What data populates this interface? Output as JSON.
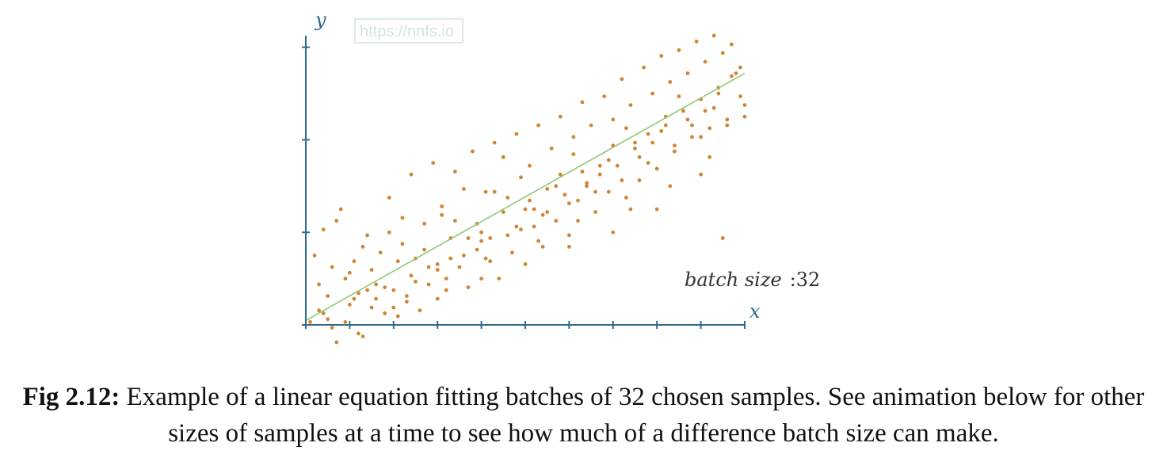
{
  "watermark": "https://nnfs.io",
  "chart_data": {
    "type": "scatter",
    "x_label": "x",
    "y_label": "y",
    "xlim": [
      0,
      10
    ],
    "ylim": [
      0,
      10
    ],
    "x_tick_count": 11,
    "y_ticks": [
      0,
      3.2,
      6.4,
      9.6
    ],
    "grid": false,
    "annotation": {
      "text_italic": "batch size",
      "text_value": ":32"
    },
    "fit_line": {
      "start": [
        0,
        0.15
      ],
      "end": [
        10,
        8.7
      ],
      "color": "#8fca72"
    },
    "point_color": "#cf8537",
    "points": [
      [
        0.1,
        0.1
      ],
      [
        0.3,
        0.5
      ],
      [
        0.5,
        0.2
      ],
      [
        0.6,
        -0.1
      ],
      [
        0.7,
        -0.6
      ],
      [
        0.9,
        0.1
      ],
      [
        1.0,
        0.7
      ],
      [
        1.2,
        -0.3
      ],
      [
        1.3,
        -0.4
      ],
      [
        1.5,
        0.6
      ],
      [
        1.6,
        0.9
      ],
      [
        1.8,
        0.4
      ],
      [
        2.0,
        1.2
      ],
      [
        2.1,
        0.3
      ],
      [
        2.3,
        0.8
      ],
      [
        2.5,
        1.5
      ],
      [
        2.6,
        0.5
      ],
      [
        2.8,
        1.4
      ],
      [
        3.0,
        1.9
      ],
      [
        3.2,
        1.2
      ],
      [
        3.3,
        2.3
      ],
      [
        3.5,
        2.0
      ],
      [
        3.7,
        1.3
      ],
      [
        3.9,
        2.6
      ],
      [
        4.0,
        2.9
      ],
      [
        4.2,
        2.2
      ],
      [
        4.4,
        1.6
      ],
      [
        4.6,
        3.1
      ],
      [
        4.7,
        2.5
      ],
      [
        4.9,
        3.3
      ],
      [
        5.0,
        4.0
      ],
      [
        5.2,
        3.4
      ],
      [
        5.4,
        2.7
      ],
      [
        5.5,
        3.9
      ],
      [
        5.7,
        3.6
      ],
      [
        5.9,
        4.5
      ],
      [
        6.0,
        3.1
      ],
      [
        6.2,
        4.3
      ],
      [
        6.4,
        4.8
      ],
      [
        6.6,
        3.9
      ],
      [
        6.7,
        5.2
      ],
      [
        6.9,
        4.6
      ],
      [
        7.1,
        5.5
      ],
      [
        7.3,
        4.4
      ],
      [
        7.5,
        6.1
      ],
      [
        7.6,
        5.0
      ],
      [
        7.8,
        6.6
      ],
      [
        8.0,
        5.4
      ],
      [
        8.2,
        6.9
      ],
      [
        8.4,
        6.0
      ],
      [
        8.6,
        7.4
      ],
      [
        8.8,
        6.5
      ],
      [
        9.0,
        7.8
      ],
      [
        9.2,
        6.8
      ],
      [
        9.4,
        8.2
      ],
      [
        9.6,
        7.1
      ],
      [
        9.8,
        8.7
      ],
      [
        10.0,
        7.6
      ],
      [
        0.2,
        2.4
      ],
      [
        0.4,
        3.3
      ],
      [
        0.8,
        4.0
      ],
      [
        1.1,
        2.2
      ],
      [
        1.4,
        3.1
      ],
      [
        1.7,
        2.5
      ],
      [
        1.9,
        4.4
      ],
      [
        2.2,
        3.7
      ],
      [
        2.4,
        5.2
      ],
      [
        2.7,
        3.5
      ],
      [
        2.9,
        5.6
      ],
      [
        3.1,
        4.1
      ],
      [
        3.4,
        5.3
      ],
      [
        3.6,
        4.7
      ],
      [
        3.8,
        6.0
      ],
      [
        4.1,
        4.6
      ],
      [
        4.3,
        6.3
      ],
      [
        4.5,
        5.8
      ],
      [
        4.8,
        6.6
      ],
      [
        5.1,
        5.5
      ],
      [
        5.3,
        6.9
      ],
      [
        5.6,
        6.1
      ],
      [
        5.8,
        7.2
      ],
      [
        6.1,
        6.5
      ],
      [
        6.3,
        7.7
      ],
      [
        6.5,
        6.9
      ],
      [
        6.8,
        7.9
      ],
      [
        7.0,
        7.1
      ],
      [
        7.2,
        8.5
      ],
      [
        7.4,
        7.6
      ],
      [
        7.7,
        8.9
      ],
      [
        7.9,
        8.0
      ],
      [
        8.1,
        9.3
      ],
      [
        8.3,
        8.4
      ],
      [
        8.5,
        9.5
      ],
      [
        8.7,
        8.7
      ],
      [
        8.9,
        9.8
      ],
      [
        9.1,
        9.1
      ],
      [
        9.3,
        10.0
      ],
      [
        9.5,
        9.4
      ],
      [
        9.7,
        9.7
      ],
      [
        9.9,
        8.9
      ],
      [
        0.3,
        1.4
      ],
      [
        0.6,
        2.0
      ],
      [
        0.9,
        1.6
      ],
      [
        1.2,
        1.1
      ],
      [
        1.5,
        1.9
      ],
      [
        1.8,
        1.3
      ],
      [
        2.1,
        2.2
      ],
      [
        2.4,
        1.7
      ],
      [
        2.7,
        2.6
      ],
      [
        3.0,
        2.1
      ],
      [
        3.3,
        3.0
      ],
      [
        3.6,
        2.4
      ],
      [
        3.9,
        3.5
      ],
      [
        4.2,
        3.0
      ],
      [
        4.5,
        3.9
      ],
      [
        4.8,
        3.4
      ],
      [
        5.1,
        4.3
      ],
      [
        5.4,
        3.8
      ],
      [
        5.7,
        4.8
      ],
      [
        6.0,
        4.2
      ],
      [
        6.3,
        5.3
      ],
      [
        6.6,
        4.6
      ],
      [
        6.9,
        5.7
      ],
      [
        7.2,
        5.0
      ],
      [
        7.5,
        6.3
      ],
      [
        7.8,
        5.6
      ],
      [
        8.1,
        6.7
      ],
      [
        8.4,
        6.2
      ],
      [
        8.7,
        7.1
      ],
      [
        9.0,
        6.5
      ],
      [
        9.3,
        7.5
      ],
      [
        9.6,
        6.9
      ],
      [
        9.9,
        7.9
      ],
      [
        0.5,
        1.0
      ],
      [
        1.0,
        1.8
      ],
      [
        1.6,
        1.4
      ],
      [
        2.2,
        2.8
      ],
      [
        2.8,
        2.0
      ],
      [
        3.4,
        3.6
      ],
      [
        4.0,
        3.2
      ],
      [
        4.6,
        4.4
      ],
      [
        5.2,
        4.0
      ],
      [
        5.8,
        5.2
      ],
      [
        6.4,
        4.9
      ],
      [
        7.0,
        6.2
      ],
      [
        7.6,
        5.8
      ],
      [
        8.2,
        7.2
      ],
      [
        8.8,
        6.9
      ],
      [
        9.4,
        8.0
      ],
      [
        10.0,
        7.2
      ],
      [
        0.7,
        3.6
      ],
      [
        1.3,
        2.7
      ],
      [
        1.9,
        3.2
      ],
      [
        2.5,
        2.3
      ],
      [
        3.1,
        3.8
      ],
      [
        3.7,
        3.0
      ],
      [
        4.3,
        4.6
      ],
      [
        4.9,
        5.1
      ],
      [
        5.5,
        4.7
      ],
      [
        6.1,
        5.9
      ],
      [
        6.7,
        5.5
      ],
      [
        7.3,
        6.8
      ],
      [
        7.9,
        6.3
      ],
      [
        8.5,
        7.9
      ],
      [
        9.1,
        7.4
      ],
      [
        9.7,
        8.6
      ],
      [
        1.1,
        0.9
      ],
      [
        2.0,
        0.6
      ],
      [
        3.0,
        0.9
      ],
      [
        4.0,
        1.6
      ],
      [
        5.0,
        2.1
      ],
      [
        6.0,
        2.7
      ],
      [
        7.0,
        3.2
      ],
      [
        8.0,
        4.0
      ],
      [
        9.0,
        5.2
      ],
      [
        9.5,
        3.0
      ],
      [
        0.4,
        0.4
      ],
      [
        1.4,
        1.2
      ],
      [
        2.3,
        1.0
      ],
      [
        3.2,
        1.6
      ],
      [
        4.1,
        2.3
      ],
      [
        5.3,
        2.9
      ],
      [
        6.2,
        3.6
      ],
      [
        7.4,
        4.0
      ],
      [
        8.3,
        4.8
      ],
      [
        9.2,
        5.8
      ]
    ]
  },
  "caption": {
    "label": "Fig 2.12:",
    "text": "Example of a linear equation fitting batches of 32 chosen samples. See animation below for other sizes of samples at a time to see how much of a difference batch size can make."
  }
}
